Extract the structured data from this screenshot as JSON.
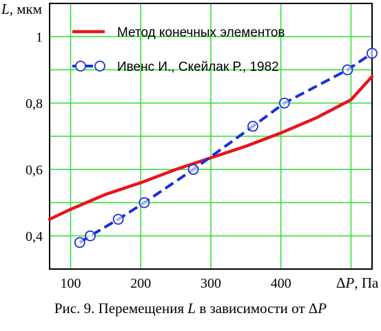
{
  "chart_data": {
    "type": "line",
    "ylabel_symbol": "L",
    "ylabel_unit": ", мкм",
    "xlabel_symbol": "ΔP",
    "xlabel_unit": ", Па",
    "xlim": [
      70,
      530
    ],
    "ylim": [
      0.3,
      1.1
    ],
    "grid": true,
    "legend": "top-left",
    "x_ticks": [
      100,
      200,
      300,
      400
    ],
    "x_tick_labels": [
      "100",
      "200",
      "300",
      "400"
    ],
    "y_ticks": [
      0.4,
      0.6,
      0.8,
      1.0
    ],
    "y_tick_labels": [
      "0,4",
      "0,6",
      "0,8",
      "1"
    ],
    "series": [
      {
        "name": "Метод конечных элементов",
        "style": "solid",
        "color": "#e8141c",
        "x": [
          70,
          100,
          150,
          200,
          250,
          300,
          350,
          400,
          450,
          500,
          530
        ],
        "y": [
          0.45,
          0.48,
          0.525,
          0.56,
          0.6,
          0.635,
          0.67,
          0.71,
          0.755,
          0.81,
          0.88
        ]
      },
      {
        "name": "Ивенс И., Скейлак Р., 1982",
        "style": "dashed-markers",
        "color": "#1c2fd8",
        "x": [
          113,
          128,
          168,
          205,
          275,
          360,
          405,
          495,
          530
        ],
        "y": [
          0.38,
          0.4,
          0.45,
          0.5,
          0.6,
          0.73,
          0.8,
          0.9,
          0.95
        ]
      }
    ]
  },
  "caption": {
    "prefix": "Рис. 9. Перемещения ",
    "symbol1": "L",
    "middle": " в зависимости от Δ",
    "symbol2": "P"
  }
}
